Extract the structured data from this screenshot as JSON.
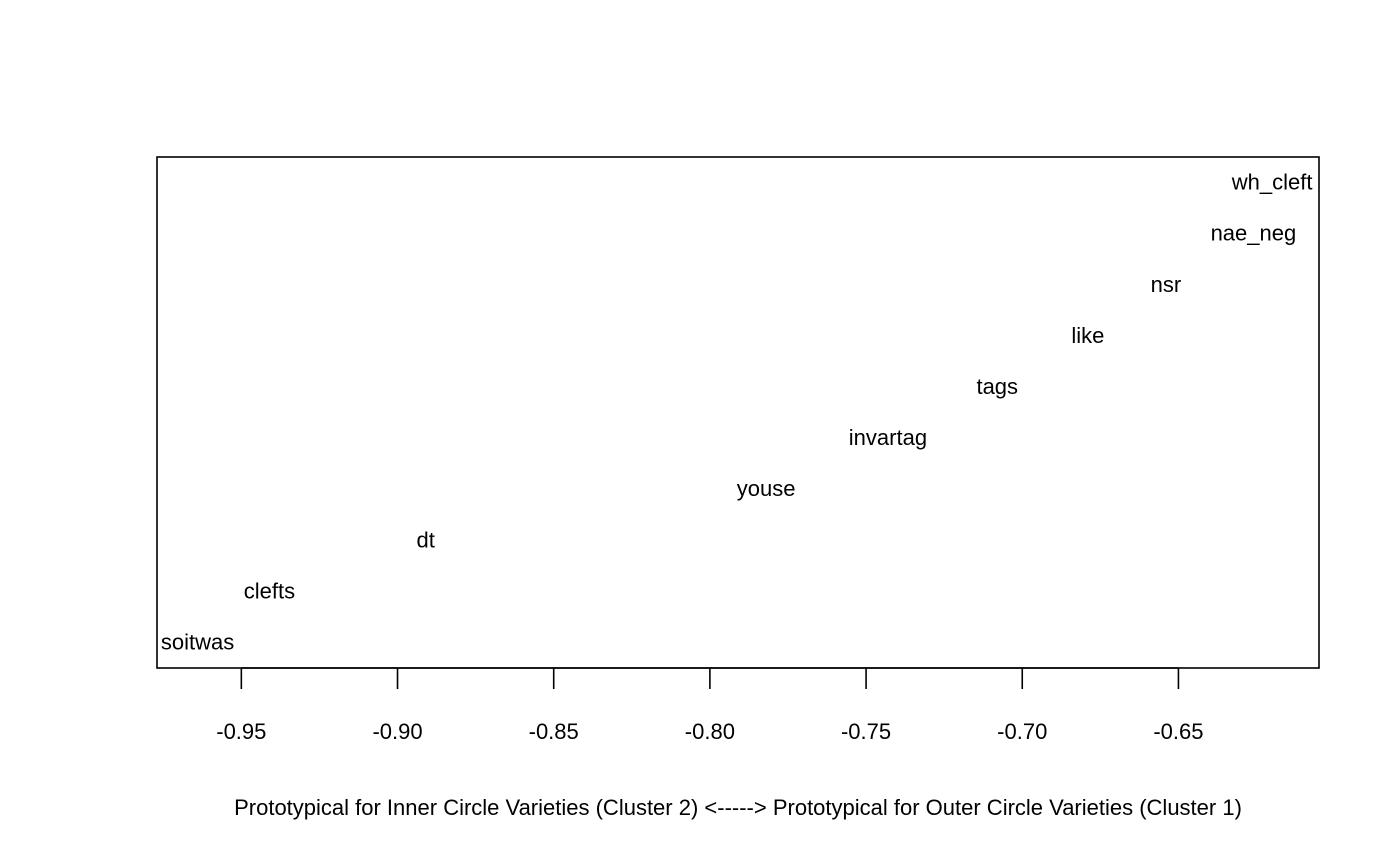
{
  "chart_data": {
    "type": "scatter",
    "title": "",
    "xlabel": "Prototypical for Inner Circle Varieties (Cluster 2) <-----> Prototypical for Outer Circle Varieties (Cluster 1)",
    "ylabel": "",
    "xlim": [
      -0.977,
      -0.605
    ],
    "ylim": [
      0.5,
      10.5
    ],
    "xticks": [
      -0.95,
      -0.9,
      -0.85,
      -0.8,
      -0.75,
      -0.7,
      -0.65
    ],
    "xtick_labels": [
      "-0.95",
      "-0.90",
      "-0.85",
      "-0.80",
      "-0.75",
      "-0.70",
      "-0.65"
    ],
    "grid": false,
    "marker": "text-label",
    "points": [
      {
        "label": "soitwas",
        "x": -0.964,
        "y": 1
      },
      {
        "label": "clefts",
        "x": -0.941,
        "y": 2
      },
      {
        "label": "dt",
        "x": -0.891,
        "y": 3
      },
      {
        "label": "youse",
        "x": -0.782,
        "y": 4
      },
      {
        "label": "invartag",
        "x": -0.743,
        "y": 5
      },
      {
        "label": "tags",
        "x": -0.708,
        "y": 6
      },
      {
        "label": "like",
        "x": -0.679,
        "y": 7
      },
      {
        "label": "nsr",
        "x": -0.654,
        "y": 8
      },
      {
        "label": "nae_neg",
        "x": -0.626,
        "y": 9
      },
      {
        "label": "wh_cleft",
        "x": -0.62,
        "y": 10
      }
    ]
  }
}
